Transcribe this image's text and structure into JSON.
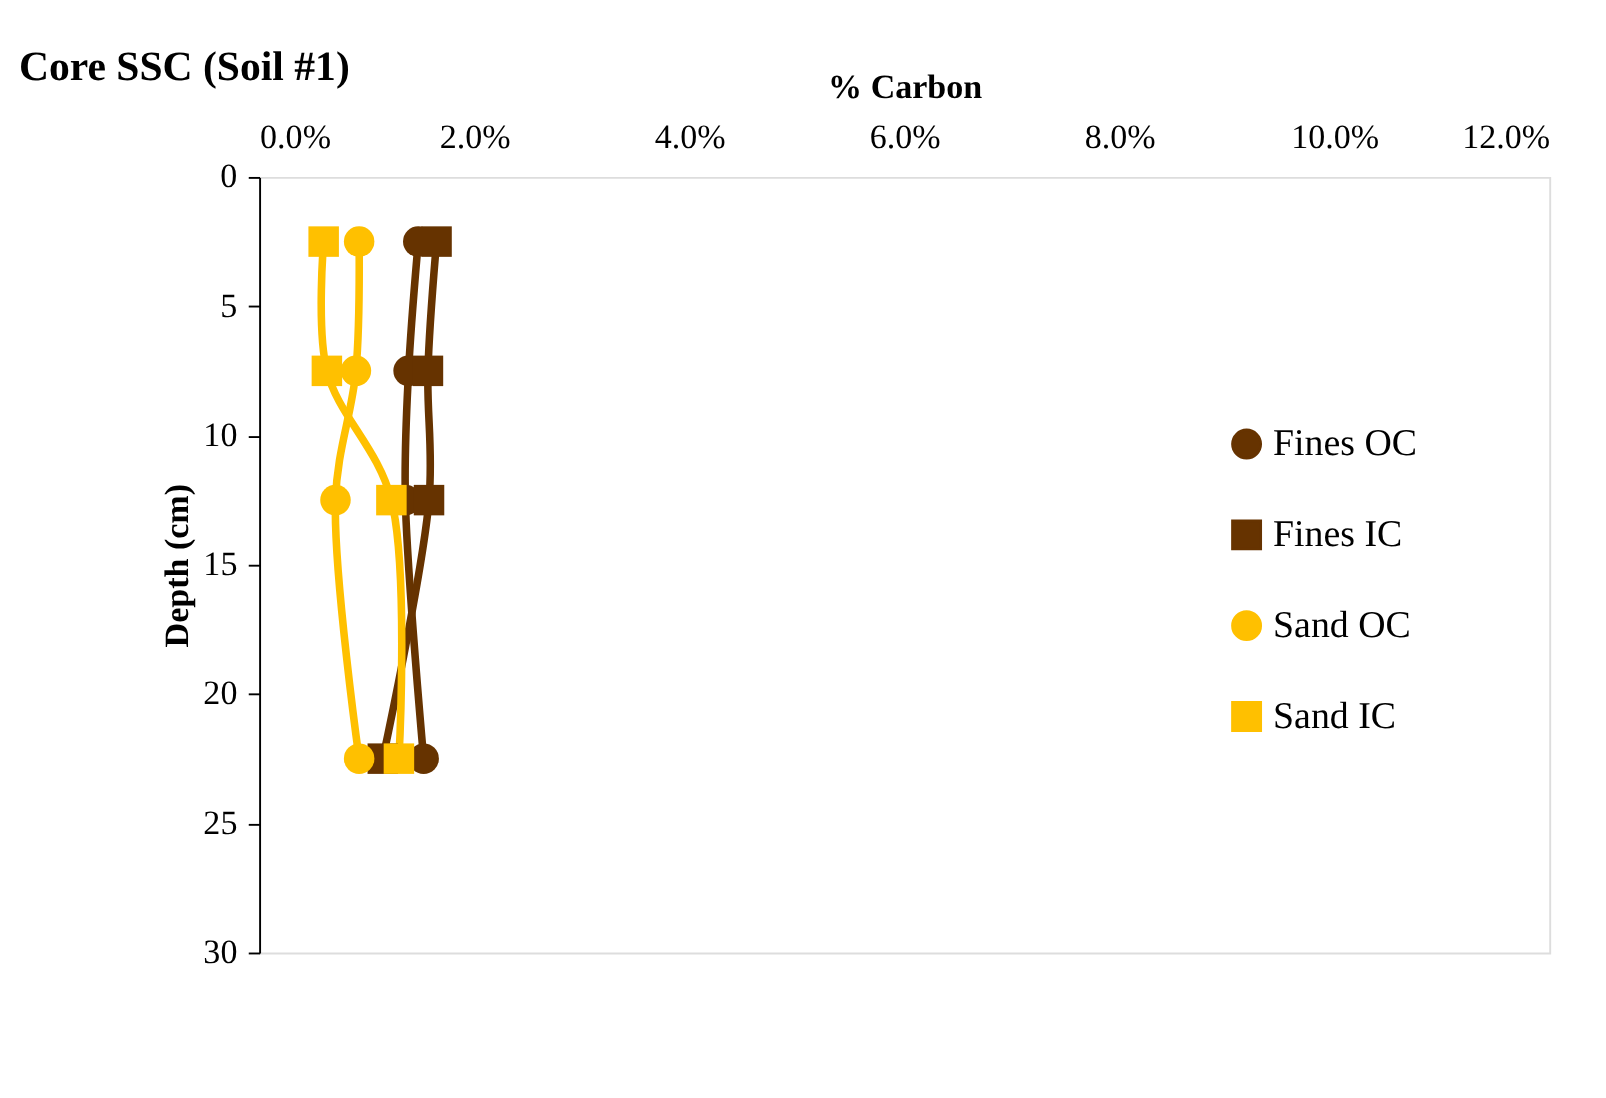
{
  "chart_data": {
    "type": "line",
    "title": "Core SSC (Soil #1)",
    "xlabel": "% Carbon",
    "ylabel": "Depth (cm)",
    "xlim": [
      0,
      12
    ],
    "xticks": [
      {
        "value": 0,
        "label": "0.0%"
      },
      {
        "value": 2,
        "label": "2.0%"
      },
      {
        "value": 4,
        "label": "4.0%"
      },
      {
        "value": 6,
        "label": "6.0%"
      },
      {
        "value": 8,
        "label": "8.0%"
      },
      {
        "value": 10,
        "label": "10.0%"
      },
      {
        "value": 12,
        "label": "12.0%"
      }
    ],
    "ylim": [
      30,
      0
    ],
    "yticks": [
      0,
      5,
      10,
      15,
      20,
      25,
      30
    ],
    "series": [
      {
        "name": "Fines OC",
        "color": "#663300",
        "marker": "circle",
        "x": [
          1.48,
          1.39,
          1.36,
          1.53
        ],
        "values": [
          2.5,
          7.5,
          12.5,
          22.5
        ]
      },
      {
        "name": "Fines IC",
        "color": "#663300",
        "marker": "square",
        "x": [
          1.65,
          1.57,
          1.58,
          1.15
        ],
        "values": [
          2.5,
          7.5,
          12.5,
          22.5
        ]
      },
      {
        "name": "Sand OC",
        "color": "#ffc000",
        "marker": "circle",
        "x": [
          0.93,
          0.9,
          0.71,
          0.93
        ],
        "values": [
          2.5,
          7.5,
          12.5,
          22.5
        ]
      },
      {
        "name": "Sand IC",
        "color": "#ffc000",
        "marker": "square",
        "x": [
          0.6,
          0.63,
          1.23,
          1.3
        ],
        "values": [
          2.5,
          7.5,
          12.5,
          22.5
        ]
      }
    ],
    "grid": false,
    "legend": "right",
    "line_style": "solid"
  }
}
